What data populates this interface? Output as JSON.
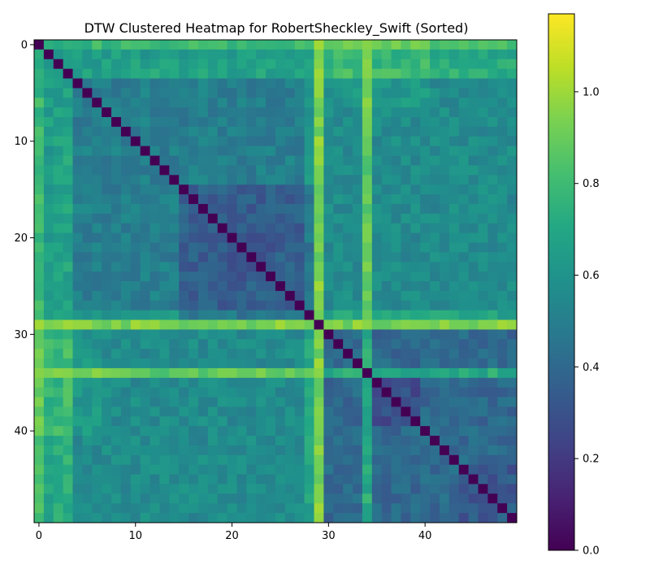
{
  "chart_data": {
    "type": "heatmap",
    "title": "DTW Clustered Heatmap for RobertSheckley_Swift (Sorted)",
    "n": 50,
    "x_ticks": [
      0,
      10,
      20,
      30,
      40
    ],
    "y_ticks": [
      0,
      10,
      20,
      30,
      40
    ],
    "colorbar": {
      "min": 0.0,
      "max": 1.17,
      "ticks": [
        0.0,
        0.2,
        0.4,
        0.6,
        0.8,
        1.0
      ],
      "tick_labels": [
        "0.0",
        "0.2",
        "0.4",
        "0.6",
        "0.8",
        "1.0"
      ],
      "colormap": "viridis"
    },
    "matrix_description": "symmetric 50x50 DTW distance matrix, diagonal = 0",
    "base_value": 0.52,
    "block_values": [
      {
        "rows": [
          0,
          28
        ],
        "cols": [
          0,
          28
        ],
        "value": 0.5
      },
      {
        "rows": [
          15,
          28
        ],
        "cols": [
          15,
          28
        ],
        "value": 0.35
      },
      {
        "rows": [
          20,
          24
        ],
        "cols": [
          20,
          24
        ],
        "value": 0.3
      },
      {
        "rows": [
          30,
          49
        ],
        "cols": [
          30,
          49
        ],
        "value": 0.4
      },
      {
        "rows": [
          35,
          39
        ],
        "cols": [
          35,
          39
        ],
        "value": 0.28
      },
      {
        "rows": [
          44,
          49
        ],
        "cols": [
          44,
          49
        ],
        "value": 0.33
      },
      {
        "rows": [
          0,
          28
        ],
        "cols": [
          30,
          49
        ],
        "value": 0.56
      },
      {
        "rows": [
          0,
          6
        ],
        "cols": [
          30,
          40
        ],
        "value": 0.62
      }
    ],
    "row_offsets": [
      {
        "index": 0,
        "offset": 0.28
      },
      {
        "index": 1,
        "offset": 0.15
      },
      {
        "index": 2,
        "offset": 0.16
      },
      {
        "index": 3,
        "offset": 0.18
      },
      {
        "index": 29,
        "offset": 0.42
      },
      {
        "index": 34,
        "offset": 0.32
      },
      {
        "index": 28,
        "offset": 0.12
      }
    ]
  }
}
